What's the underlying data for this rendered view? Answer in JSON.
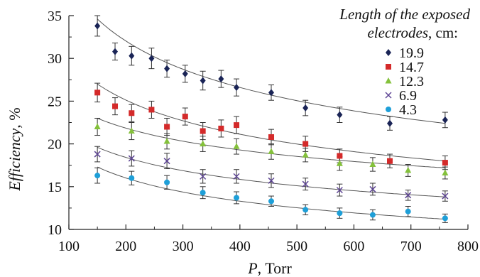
{
  "chart_data": {
    "type": "scatter",
    "title": "",
    "xlabel": {
      "symbol": "P",
      "unit": ", Torr"
    },
    "ylabel": {
      "name": "Efficiency",
      "unit": ", %"
    },
    "xlim": [
      100,
      800
    ],
    "ylim": [
      10,
      35
    ],
    "xticks": [
      100,
      200,
      300,
      400,
      500,
      600,
      700,
      800
    ],
    "yticks": [
      10,
      15,
      20,
      25,
      30,
      35
    ],
    "grid": false,
    "legend": {
      "placement": "top-right",
      "title_line1": "Length of the exposed",
      "title_line2_italic": "electrodes",
      "title_line2_rest": ", cm:"
    },
    "series": [
      {
        "name": "19.9",
        "marker": "diamond",
        "color": "#1a2456",
        "x": [
          150,
          181,
          210,
          245,
          272,
          304,
          335,
          367,
          394,
          455,
          515,
          575,
          663,
          760
        ],
        "y": [
          33.8,
          30.8,
          30.3,
          30.0,
          28.8,
          28.2,
          27.4,
          27.6,
          26.6,
          26.0,
          24.2,
          23.4,
          22.4,
          22.8
        ],
        "err": [
          1.2,
          1.0,
          1.1,
          1.2,
          1.0,
          1.0,
          1.1,
          1.0,
          1.0,
          0.9,
          0.9,
          0.9,
          0.8,
          0.9
        ],
        "fit": [
          34.6,
          22.4
        ]
      },
      {
        "name": "14.7",
        "marker": "square",
        "color": "#d42a2a",
        "x": [
          150,
          181,
          210,
          245,
          272,
          304,
          335,
          367,
          394,
          455,
          515,
          575,
          663,
          760
        ],
        "y": [
          26.0,
          24.4,
          23.6,
          24.0,
          22.0,
          23.2,
          21.5,
          21.8,
          22.2,
          20.8,
          20.0,
          18.6,
          18.0,
          17.8
        ],
        "err": [
          1.1,
          1.0,
          1.0,
          1.0,
          1.0,
          1.0,
          1.0,
          1.0,
          1.0,
          0.9,
          0.9,
          0.8,
          0.8,
          0.8
        ],
        "fit": [
          27.0,
          18.0
        ]
      },
      {
        "name": "12.3",
        "marker": "triangle",
        "color": "#84c13b",
        "x": [
          150,
          210,
          272,
          335,
          394,
          455,
          515,
          575,
          633,
          695,
          760
        ],
        "y": [
          22.0,
          21.5,
          20.3,
          20.0,
          19.7,
          19.1,
          18.7,
          17.7,
          17.6,
          16.9,
          16.6
        ],
        "err": [
          1.0,
          1.0,
          0.9,
          0.9,
          0.9,
          0.9,
          0.8,
          0.8,
          0.8,
          0.7,
          0.7
        ],
        "fit": [
          23.0,
          17.2
        ]
      },
      {
        "name": "6.9",
        "marker": "x",
        "color": "#5e4595",
        "x": [
          150,
          210,
          272,
          335,
          394,
          455,
          515,
          575,
          633,
          695,
          760
        ],
        "y": [
          18.8,
          18.3,
          18.0,
          16.2,
          16.2,
          15.7,
          15.3,
          14.6,
          14.7,
          14.0,
          13.9
        ],
        "err": [
          0.9,
          0.9,
          0.9,
          0.8,
          0.8,
          0.8,
          0.7,
          0.7,
          0.7,
          0.6,
          0.6
        ],
        "fit": [
          19.6,
          13.8
        ]
      },
      {
        "name": "4.3",
        "marker": "circle",
        "color": "#1e9fd8",
        "x": [
          150,
          210,
          272,
          335,
          394,
          455,
          515,
          575,
          633,
          695,
          760
        ],
        "y": [
          16.3,
          16.0,
          15.5,
          14.3,
          13.7,
          13.3,
          12.3,
          11.9,
          11.7,
          12.1,
          11.3
        ],
        "err": [
          0.9,
          0.8,
          0.8,
          0.7,
          0.7,
          0.6,
          0.6,
          0.6,
          0.6,
          0.6,
          0.5
        ],
        "fit": [
          17.3,
          11.2
        ]
      }
    ]
  }
}
